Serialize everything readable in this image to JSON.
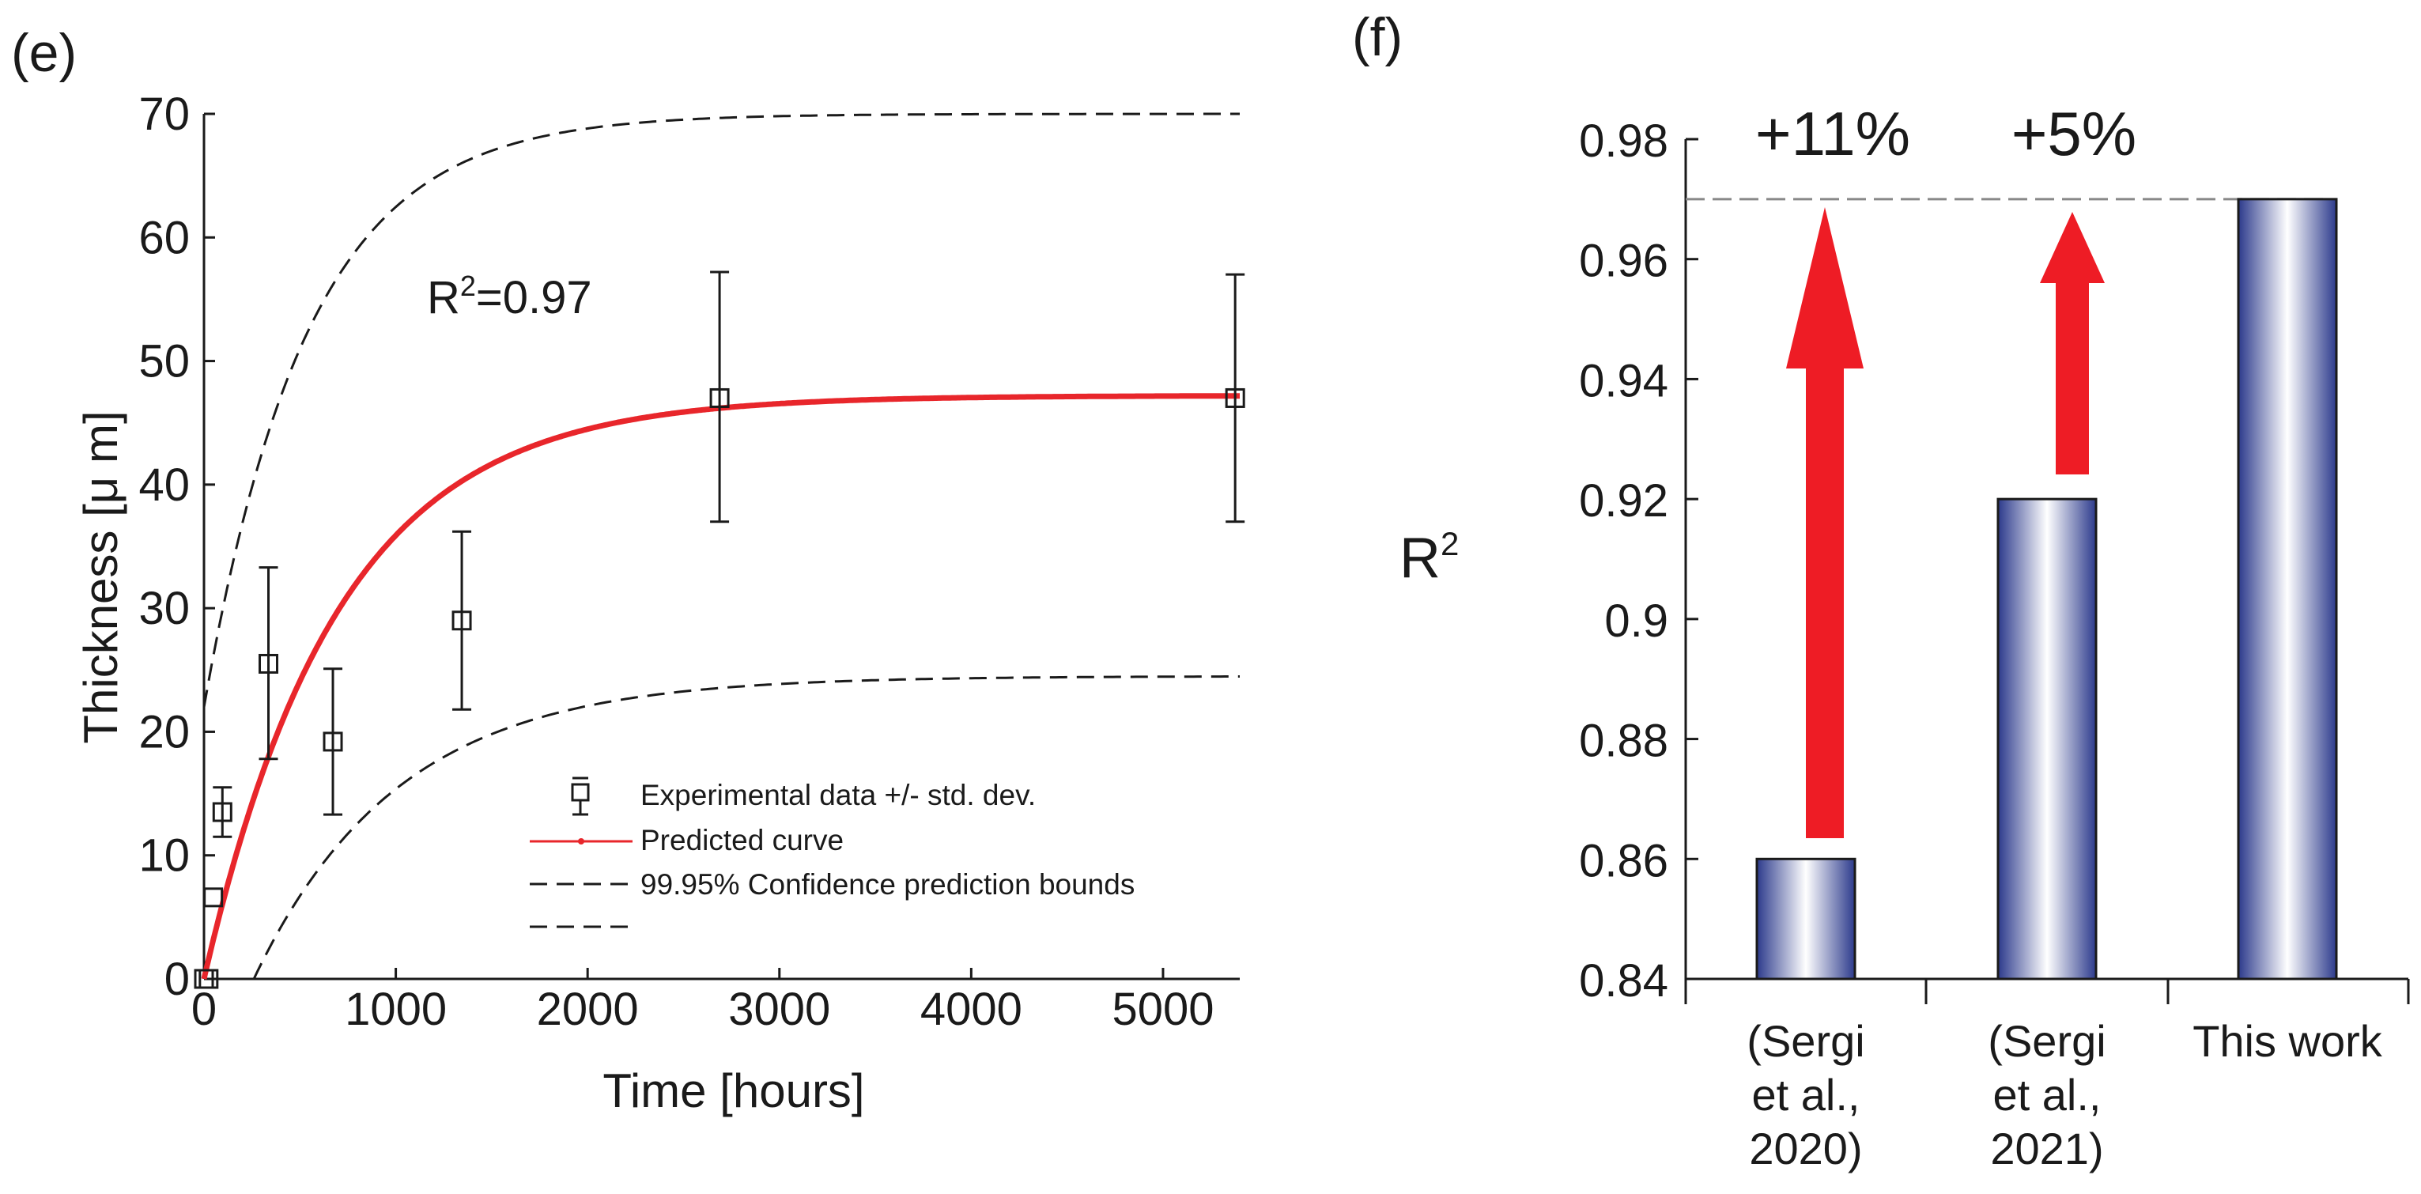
{
  "chart_data": [
    {
      "panel": "(e)",
      "type": "scatter",
      "xlabel": "Time [hours]",
      "ylabel": "Thickness [μ m]",
      "xlim": [
        0,
        5400
      ],
      "ylim": [
        0,
        70
      ],
      "xticks": [
        "0",
        "1000",
        "2000",
        "3000",
        "4000",
        "5000"
      ],
      "yticks": [
        "0",
        "10",
        "20",
        "30",
        "40",
        "50",
        "60",
        "70"
      ],
      "annotation": {
        "base": "R",
        "sup": "2",
        "rest": "=0.97"
      },
      "legend": {
        "position": "bottom-right",
        "entries": [
          "Experimental data +/- std. dev.",
          "Predicted curve",
          "99.95% Confidence prediction bounds"
        ]
      },
      "series": [
        {
          "name": "Experimental data +/- std. dev.",
          "points": [
            {
              "x": 0,
              "y": 0,
              "lo": 0,
              "hi": 0
            },
            {
              "x": 24,
              "y": 0,
              "lo": 0,
              "hi": 0
            },
            {
              "x": 48,
              "y": 6.6,
              "lo": 6.6,
              "hi": 6.6
            },
            {
              "x": 96,
              "y": 13.5,
              "lo": 11.5,
              "hi": 15.5
            },
            {
              "x": 336,
              "y": 25.5,
              "lo": 17.8,
              "hi": 33.3
            },
            {
              "x": 672,
              "y": 19.2,
              "lo": 13.3,
              "hi": 25.1
            },
            {
              "x": 1344,
              "y": 29,
              "lo": 21.8,
              "hi": 36.2
            },
            {
              "x": 2688,
              "y": 47,
              "lo": 37,
              "hi": 57.2
            },
            {
              "x": 5376,
              "y": 47,
              "lo": 37,
              "hi": 57
            }
          ]
        },
        {
          "name": "Predicted curve",
          "model": "y = 47.2 * (1 - exp(-x / 700))",
          "color": "#e8262b"
        },
        {
          "name": "99.95% Confidence prediction bounds",
          "upper": "y = 22 + 48 * (1 - exp(-x / 540))",
          "lower": "y = 24.5 * (1 - exp(-(x - 260) / 750))",
          "style": "dashed"
        }
      ]
    },
    {
      "panel": "(f)",
      "type": "bar",
      "ylabel": {
        "base": "R",
        "sup": "2"
      },
      "ylim": [
        0.84,
        0.98
      ],
      "yticks": [
        "0.84",
        "0.86",
        "0.88",
        "0.9",
        "0.92",
        "0.94",
        "0.96",
        "0.98"
      ],
      "categories": [
        [
          "(Sergi",
          "et al.,",
          "2020)"
        ],
        [
          "(Sergi",
          "et al.,",
          "2021)"
        ],
        [
          "This work"
        ]
      ],
      "values": [
        0.86,
        0.92,
        0.97
      ],
      "reference_line": 0.97,
      "improvements": [
        "+11%",
        "+5%"
      ],
      "bar_color": "#3a4a9a",
      "arrow_color": "#ee1c25"
    }
  ]
}
